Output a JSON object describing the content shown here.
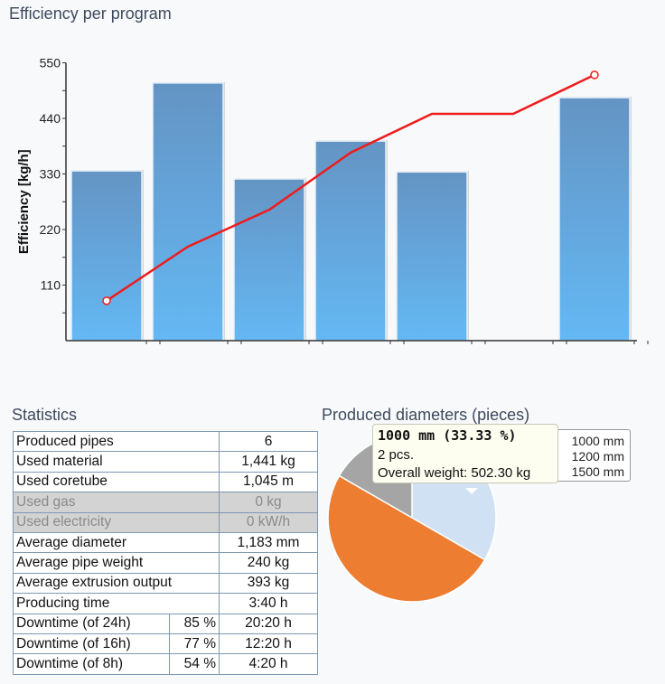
{
  "chart_data": [
    {
      "type": "bar+line",
      "title": "Efficiency per program",
      "ylabel": "Efficiency [kg/h]",
      "ylim": [
        0,
        550
      ],
      "yticks": [
        110,
        220,
        330,
        440,
        550
      ],
      "grid": false,
      "bar_values": [
        336,
        510,
        320,
        395,
        334,
        null,
        481
      ],
      "line_values": [
        79,
        186,
        259,
        372,
        449,
        449,
        526
      ],
      "colors": {
        "bar": "#5fa8e6",
        "line": "#ee1c1c"
      }
    },
    {
      "type": "pie",
      "title": "Produced diameters (pieces)",
      "categories": [
        "1000 mm",
        "1200 mm",
        "1500 mm"
      ],
      "values": [
        2,
        3,
        1
      ],
      "colors": [
        "#cfe1f3",
        "#ed7d31",
        "#a5a5a5"
      ],
      "legend": "top-right",
      "tooltip": {
        "heading": "1000 mm (33.33 %)",
        "pieces": "2 pcs.",
        "weight": "Overall weight: 502.30 kg"
      }
    }
  ],
  "stats": {
    "title": "Statistics",
    "rows": [
      {
        "label": "Produced pipes",
        "value": "6"
      },
      {
        "label": "Used material",
        "value": "1,441 kg"
      },
      {
        "label": "Used coretube",
        "value": "1,045 m"
      },
      {
        "label": "Used gas",
        "value": "0 kg",
        "disabled": true
      },
      {
        "label": "Used electricity",
        "value": "0 kW/h",
        "disabled": true
      },
      {
        "label": "Average diameter",
        "value": "1,183 mm"
      },
      {
        "label": "Average pipe weight",
        "value": "240 kg"
      },
      {
        "label": "Average extrusion output",
        "value": "393 kg"
      },
      {
        "label": "Producing time",
        "value": "3:40 h"
      },
      {
        "label": "Downtime (of 24h)",
        "pct": "85 %",
        "value": "20:20 h"
      },
      {
        "label": "Downtime (of 16h)",
        "pct": "77 %",
        "value": "12:20 h"
      },
      {
        "label": "Downtime (of 8h)",
        "pct": "54 %",
        "value": "4:20 h"
      }
    ]
  }
}
